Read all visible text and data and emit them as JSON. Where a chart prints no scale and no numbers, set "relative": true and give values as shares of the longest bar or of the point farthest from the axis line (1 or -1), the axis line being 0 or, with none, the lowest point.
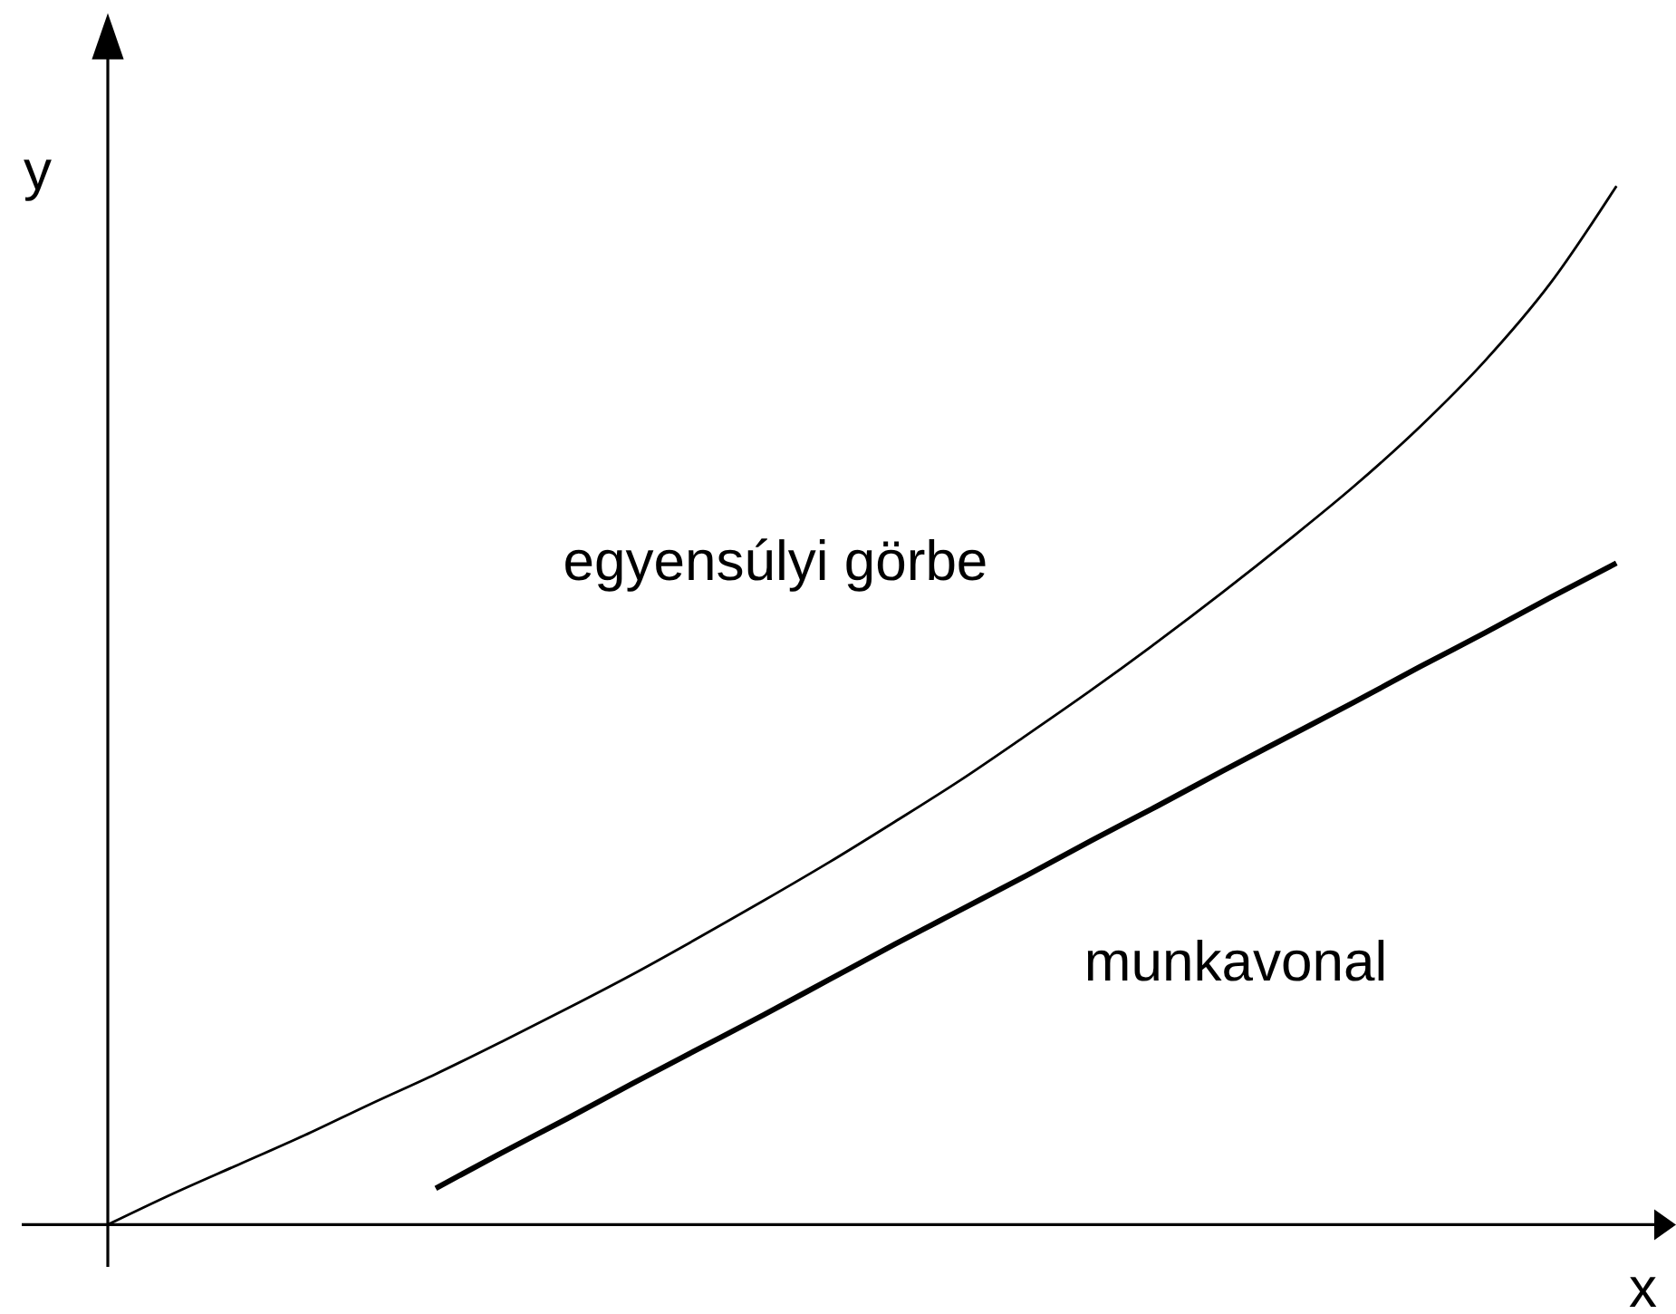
{
  "chart_data": {
    "type": "line",
    "relative": true,
    "xlabel": "x",
    "ylabel": "y",
    "marker": "none",
    "categories": [
      null,
      null,
      null,
      null,
      null,
      null,
      null,
      null,
      null,
      null,
      null,
      null,
      null,
      null,
      null,
      null,
      null,
      null,
      null,
      null,
      null,
      null,
      null,
      null
    ],
    "series": [
      {
        "name": "egyensúlyi görbe",
        "color": "#000000",
        "values": [
          0,
          0.03,
          0.058,
          0.086,
          0.116,
          0.145,
          0.176,
          0.208,
          0.241,
          0.276,
          0.312,
          0.349,
          0.388,
          0.428,
          0.471,
          0.515,
          0.561,
          0.609,
          0.659,
          0.711,
          0.768,
          0.832,
          0.907,
          1
        ]
      },
      {
        "name": "munkavonal",
        "color": "#000000",
        "values": [
          null,
          null,
          null,
          null,
          null,
          0.035,
          0.069,
          0.102,
          0.136,
          0.169,
          0.202,
          0.236,
          0.27,
          0.303,
          0.336,
          0.37,
          0.403,
          0.437,
          0.47,
          0.503,
          0.537,
          0.57,
          0.604,
          0.637
        ]
      }
    ]
  }
}
